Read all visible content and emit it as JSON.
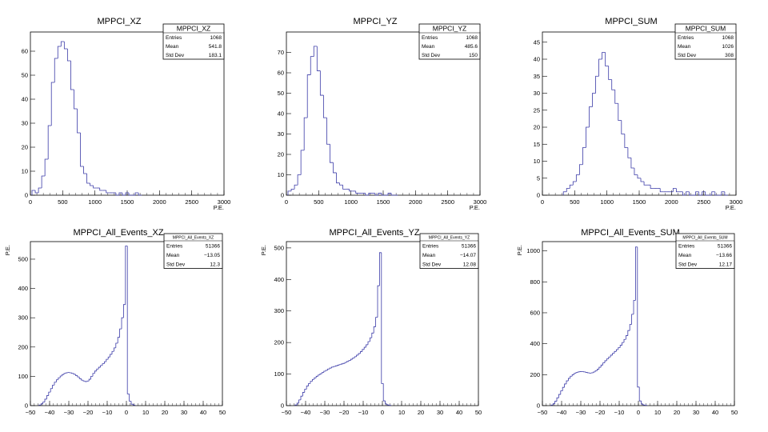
{
  "chart_data": [
    {
      "type": "bar",
      "title": "MPPCI_XZ",
      "xlabel": "P.E.",
      "ylabel": "",
      "xlim": [
        0,
        3000
      ],
      "ylim": [
        0,
        68
      ],
      "xticks": [
        0,
        500,
        1000,
        1500,
        2000,
        2500,
        3000
      ],
      "yticks": [
        0,
        10,
        20,
        30,
        40,
        50,
        60
      ],
      "stats": {
        "name": "MPPCI_XZ",
        "rows": [
          [
            "Entries",
            "1068"
          ],
          [
            "Mean",
            "541.8"
          ],
          [
            "Std Dev",
            "183.1"
          ]
        ]
      },
      "series": [
        {
          "x": [
            50,
            100,
            150,
            200,
            250,
            300,
            350,
            400,
            450,
            500,
            550,
            600,
            650,
            700,
            750,
            800,
            850,
            900,
            950,
            1000,
            1050,
            1100,
            1150,
            1200,
            1250,
            1300,
            1350,
            1400,
            1450,
            1500,
            1550,
            1600,
            1650,
            1700
          ],
          "values": [
            2,
            1,
            3,
            8,
            15,
            29,
            47,
            57,
            62,
            64,
            61,
            56,
            44,
            36,
            26,
            12,
            9,
            5,
            4,
            3,
            3,
            2,
            2,
            1,
            1,
            1,
            0,
            1,
            0,
            1,
            0,
            0,
            1,
            0
          ]
        }
      ],
      "color": "#3b3ba8"
    },
    {
      "type": "bar",
      "title": "MPPCI_YZ",
      "xlabel": "P.E.",
      "ylabel": "",
      "xlim": [
        0,
        3000
      ],
      "ylim": [
        0,
        80
      ],
      "xticks": [
        0,
        500,
        1000,
        1500,
        2000,
        2500,
        3000
      ],
      "yticks": [
        0,
        10,
        20,
        30,
        40,
        50,
        60,
        70
      ],
      "stats": {
        "name": "MPPCI_YZ",
        "rows": [
          [
            "Entries",
            "1068"
          ],
          [
            "Mean",
            "485.6"
          ],
          [
            "Std Dev",
            "150"
          ]
        ]
      },
      "series": [
        {
          "x": [
            50,
            100,
            150,
            200,
            250,
            300,
            350,
            400,
            450,
            500,
            550,
            600,
            650,
            700,
            750,
            800,
            850,
            900,
            950,
            1000,
            1050,
            1100,
            1150,
            1200,
            1250,
            1300,
            1350,
            1400,
            1450,
            1500,
            1550,
            1600,
            1650,
            1700
          ],
          "values": [
            2,
            3,
            5,
            10,
            22,
            38,
            59,
            68,
            73,
            61,
            49,
            38,
            25,
            16,
            11,
            6,
            5,
            3,
            3,
            2,
            2,
            1,
            1,
            1,
            0,
            1,
            1,
            0,
            1,
            0,
            0,
            1,
            0,
            0
          ]
        }
      ],
      "color": "#3b3ba8"
    },
    {
      "type": "bar",
      "title": "MPPCI_SUM",
      "xlabel": "P.E.",
      "ylabel": "",
      "xlim": [
        0,
        3000
      ],
      "ylim": [
        0,
        48
      ],
      "xticks": [
        0,
        500,
        1000,
        1500,
        2000,
        2500,
        3000
      ],
      "yticks": [
        0,
        5,
        10,
        15,
        20,
        25,
        30,
        35,
        40,
        45
      ],
      "stats": {
        "name": "MPPCI_SUM",
        "rows": [
          [
            "Entries",
            "1068"
          ],
          [
            "Mean",
            "1026"
          ],
          [
            "Std Dev",
            "308"
          ]
        ]
      },
      "series": [
        {
          "x": [
            350,
            400,
            450,
            500,
            550,
            600,
            650,
            700,
            750,
            800,
            850,
            900,
            950,
            1000,
            1050,
            1100,
            1150,
            1200,
            1250,
            1300,
            1350,
            1400,
            1450,
            1500,
            1550,
            1600,
            1650,
            1700,
            1750,
            1800,
            1850,
            1900,
            1950,
            2000,
            2050,
            2100,
            2150,
            2200,
            2250,
            2300,
            2350,
            2400,
            2450,
            2500,
            2550,
            2600,
            2650,
            2700,
            2750,
            2800,
            2850
          ],
          "values": [
            1,
            2,
            3,
            4,
            6,
            9,
            14,
            20,
            26,
            30,
            35,
            40,
            42,
            38,
            34,
            31,
            27,
            22,
            18,
            14,
            11,
            8,
            6,
            5,
            4,
            3,
            3,
            2,
            2,
            2,
            1,
            1,
            1,
            1,
            2,
            1,
            1,
            0,
            1,
            0,
            0,
            1,
            0,
            1,
            0,
            0,
            1,
            0,
            0,
            1,
            0
          ]
        }
      ],
      "color": "#3b3ba8"
    },
    {
      "type": "bar",
      "title": "MPPCI_All_Events_XZ",
      "xlabel": "",
      "ylabel": "P.E.",
      "xlim": [
        -50,
        50
      ],
      "ylim": [
        0,
        560
      ],
      "xticks": [
        -50,
        -40,
        -30,
        -20,
        -10,
        0,
        10,
        20,
        30,
        40,
        50
      ],
      "yticks": [
        0,
        100,
        200,
        300,
        400,
        500
      ],
      "stats": {
        "name": "MPPCI_All_Events_XZ",
        "rows": [
          [
            "Entries",
            "51366"
          ],
          [
            "Mean",
            "-13.05"
          ],
          [
            "Std Dev",
            "12.3"
          ]
        ]
      },
      "series": [
        {
          "x": [
            -45,
            -44,
            -43,
            -42,
            -41,
            -40,
            -39,
            -38,
            -37,
            -36,
            -35,
            -34,
            -33,
            -32,
            -31,
            -30,
            -29,
            -28,
            -27,
            -26,
            -25,
            -24,
            -23,
            -22,
            -21,
            -20,
            -19,
            -18,
            -17,
            -16,
            -15,
            -14,
            -13,
            -12,
            -11,
            -10,
            -9,
            -8,
            -7,
            -6,
            -5,
            -4,
            -3,
            -2,
            -1,
            0,
            1,
            2,
            3,
            4
          ],
          "values": [
            2,
            6,
            12,
            22,
            34,
            46,
            58,
            70,
            80,
            88,
            95,
            101,
            106,
            110,
            112,
            113,
            112,
            110,
            107,
            103,
            98,
            92,
            87,
            84,
            82,
            84,
            90,
            100,
            110,
            118,
            125,
            131,
            137,
            143,
            150,
            158,
            166,
            175,
            185,
            197,
            213,
            233,
            262,
            300,
            345,
            545,
            40,
            15,
            5,
            2
          ]
        }
      ],
      "color": "#3b3ba8"
    },
    {
      "type": "bar",
      "title": "MPPCI_All_Events_YZ",
      "xlabel": "",
      "ylabel": "P.E.",
      "xlim": [
        -50,
        50
      ],
      "ylim": [
        0,
        520
      ],
      "xticks": [
        -50,
        -40,
        -30,
        -20,
        -10,
        0,
        10,
        20,
        30,
        40,
        50
      ],
      "yticks": [
        0,
        100,
        200,
        300,
        400,
        500
      ],
      "stats": {
        "name": "MPPCI_All_Events_YZ",
        "rows": [
          [
            "Entries",
            "51366"
          ],
          [
            "Mean",
            "-14.07"
          ],
          [
            "Std Dev",
            "12.08"
          ]
        ]
      },
      "series": [
        {
          "x": [
            -45,
            -44,
            -43,
            -42,
            -41,
            -40,
            -39,
            -38,
            -37,
            -36,
            -35,
            -34,
            -33,
            -32,
            -31,
            -30,
            -29,
            -28,
            -27,
            -26,
            -25,
            -24,
            -23,
            -22,
            -21,
            -20,
            -19,
            -18,
            -17,
            -16,
            -15,
            -14,
            -13,
            -12,
            -11,
            -10,
            -9,
            -8,
            -7,
            -6,
            -5,
            -4,
            -3,
            -2,
            -1,
            0,
            1,
            2,
            3,
            4
          ],
          "values": [
            2,
            8,
            18,
            30,
            42,
            52,
            62,
            70,
            77,
            83,
            88,
            93,
            97,
            101,
            105,
            109,
            112,
            116,
            119,
            122,
            124,
            126,
            128,
            130,
            132,
            134,
            137,
            140,
            143,
            147,
            151,
            155,
            160,
            165,
            171,
            178,
            185,
            193,
            203,
            215,
            230,
            250,
            280,
            380,
            485,
            70,
            15,
            5,
            2,
            1
          ]
        }
      ],
      "color": "#3b3ba8"
    },
    {
      "type": "bar",
      "title": "MPPCI_All_Events_SUM",
      "xlabel": "",
      "ylabel": "P.E.",
      "xlim": [
        -50,
        50
      ],
      "ylim": [
        0,
        1060
      ],
      "xticks": [
        -50,
        -40,
        -30,
        -20,
        -10,
        0,
        10,
        20,
        30,
        40,
        50
      ],
      "yticks": [
        0,
        200,
        400,
        600,
        800,
        1000
      ],
      "stats": {
        "name": "MPPCI_All_Events_SUM",
        "rows": [
          [
            "Entries",
            "51366"
          ],
          [
            "Mean",
            "-13.66"
          ],
          [
            "Std Dev",
            "12.17"
          ]
        ]
      },
      "series": [
        {
          "x": [
            -45,
            -44,
            -43,
            -42,
            -41,
            -40,
            -39,
            -38,
            -37,
            -36,
            -35,
            -34,
            -33,
            -32,
            -31,
            -30,
            -29,
            -28,
            -27,
            -26,
            -25,
            -24,
            -23,
            -22,
            -21,
            -20,
            -19,
            -18,
            -17,
            -16,
            -15,
            -14,
            -13,
            -12,
            -11,
            -10,
            -9,
            -8,
            -7,
            -6,
            -5,
            -4,
            -3,
            -2,
            -1,
            0,
            1,
            2,
            3,
            4
          ],
          "values": [
            4,
            12,
            28,
            50,
            72,
            95,
            118,
            140,
            160,
            176,
            190,
            200,
            208,
            214,
            218,
            220,
            220,
            218,
            215,
            212,
            210,
            212,
            217,
            225,
            235,
            248,
            262,
            276,
            290,
            302,
            314,
            326,
            338,
            350,
            362,
            375,
            390,
            408,
            428,
            452,
            485,
            525,
            590,
            680,
            1025,
            120,
            30,
            10,
            4,
            2
          ]
        }
      ],
      "color": "#3b3ba8"
    }
  ]
}
